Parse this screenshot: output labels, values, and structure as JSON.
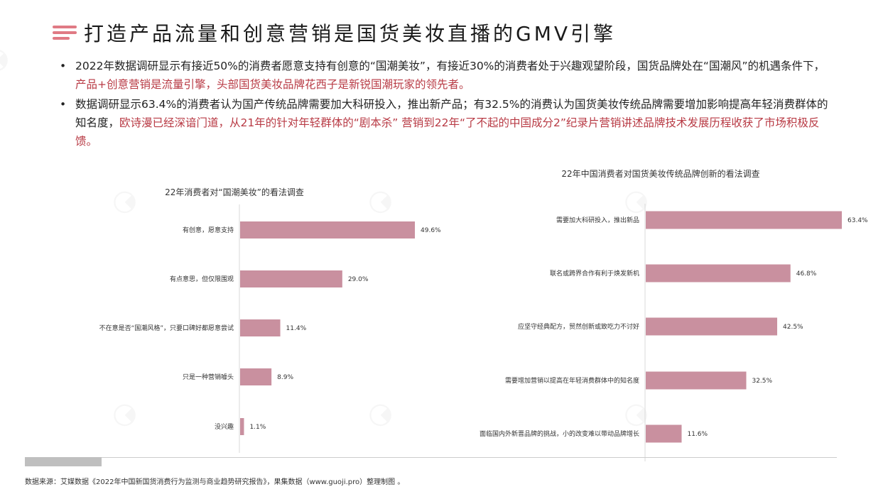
{
  "header": {
    "title": "打造产品流量和创意营销是国货美妆直播的GMV引擎"
  },
  "bullets": [
    {
      "text": "2022年数据调研显示有接近50%的消费者愿意支持有创意的“国潮美妆”，有接近30%的消费者处于兴趣观望阶段，国货品牌处在“国潮风”的机遇条件下，",
      "highlight": "产品+创意营销是流量引擎，头部国货美妆品牌花西子是新锐国潮玩家的领先者。"
    },
    {
      "text": "数据调研显示63.4%的消费者认为国产传统品牌需要加大科研投入，推出新产品；有32.5%的消费认为国货美妆传统品牌需要增加影响提高年轻消费群体的知名度，",
      "highlight": "欧诗漫已经深谙门道，从21年的针对年轻群体的“剧本杀” 营销到22年“了不起的中国成分2”纪录片营销讲述品牌技术发展历程收获了市场积极反馈。"
    }
  ],
  "colors": {
    "accent": "#e07a84",
    "bar": "#c9909f",
    "highlight_text": "#b83a44"
  },
  "chart_data": [
    {
      "type": "bar",
      "orientation": "horizontal",
      "title": "22年消费者对“国潮美妆”的看法调查",
      "categories": [
        "有创意，愿意支持",
        "有点意思，但仅限围观",
        "不在意是否“国潮风格”，只要口碑好都愿意尝试",
        "只是一种营销噱头",
        "没兴趣"
      ],
      "values": [
        49.6,
        29.0,
        11.4,
        8.9,
        1.1
      ],
      "labels": [
        "49.6%",
        "29.0%",
        "11.4%",
        "8.9%",
        "1.1%"
      ],
      "unit": "%",
      "xlim": [
        0,
        60
      ]
    },
    {
      "type": "bar",
      "orientation": "horizontal",
      "title": "22年中国消费者对国货美妆传统品牌创新的看法调查",
      "categories": [
        "需要加大科研投入，推出新品",
        "联名或跨界合作有利于焕发新机",
        "应坚守经典配方，贸然创新或致吃力不讨好",
        "需要增加营销以提高在年轻消费群体中的知名度",
        "面临国内外新晋品牌的挑战，小的改变难以带动品牌增长"
      ],
      "values": [
        63.4,
        46.8,
        42.5,
        32.5,
        11.6
      ],
      "labels": [
        "63.4%",
        "46.8%",
        "42.5%",
        "32.5%",
        "11.6%"
      ],
      "unit": "%",
      "xlim": [
        0,
        70
      ]
    }
  ],
  "footer": {
    "source": "数据来源：艾媒数据《2022年中国新国货消费行为监测与商业趋势研究报告》，果集数据（www.guoji.pro）整理制图 。"
  }
}
